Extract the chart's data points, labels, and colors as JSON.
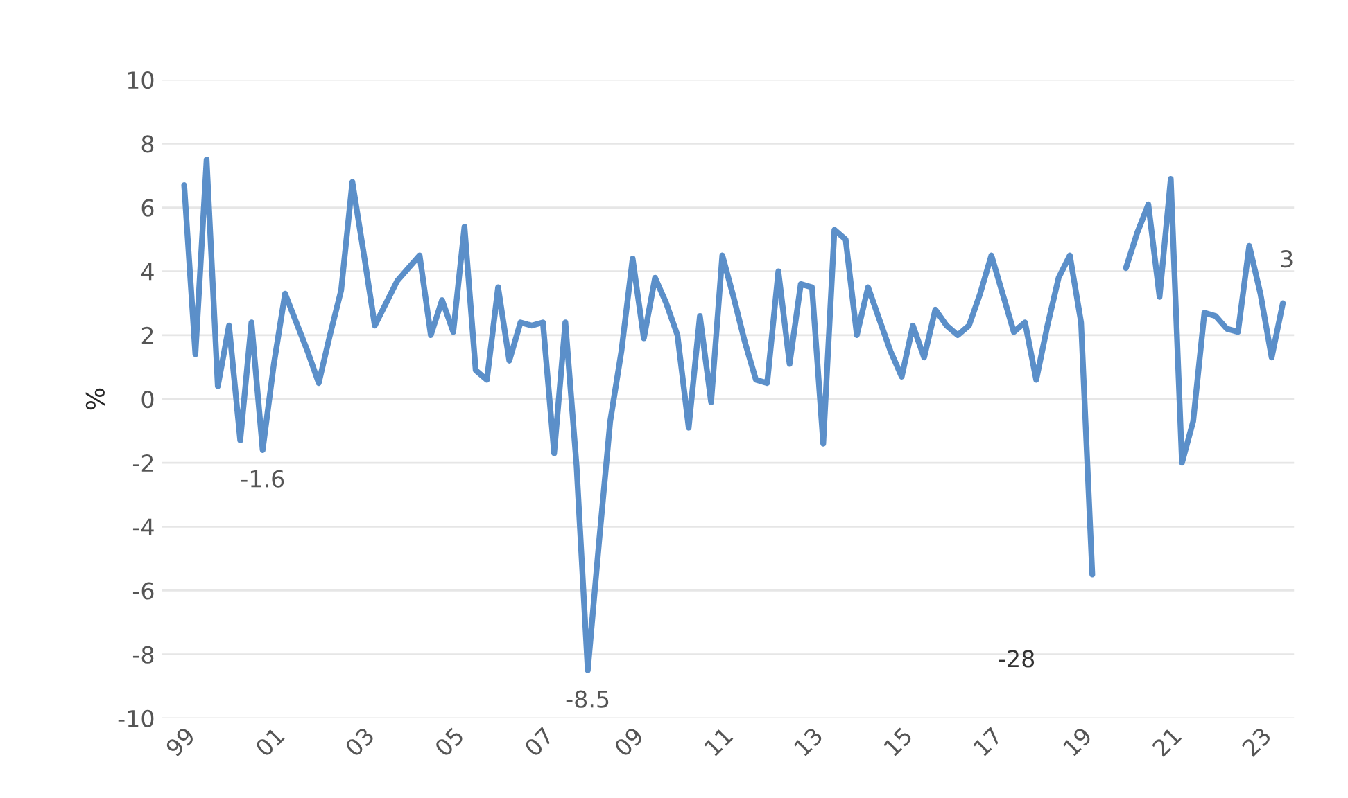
{
  "chart_data": {
    "type": "line",
    "ylabel": "%",
    "categories": [
      "99",
      null,
      null,
      null,
      null,
      null,
      null,
      null,
      "01",
      null,
      null,
      null,
      null,
      null,
      null,
      null,
      "03",
      null,
      null,
      null,
      null,
      null,
      null,
      null,
      "05",
      null,
      null,
      null,
      null,
      null,
      null,
      null,
      "07",
      null,
      null,
      null,
      null,
      null,
      null,
      null,
      "09",
      null,
      null,
      null,
      null,
      null,
      null,
      null,
      "11",
      null,
      null,
      null,
      null,
      null,
      null,
      null,
      "13",
      null,
      null,
      null,
      null,
      null,
      null,
      null,
      "15",
      null,
      null,
      null,
      null,
      null,
      null,
      null,
      "17",
      null,
      null,
      null,
      null,
      null,
      null,
      null,
      "19",
      null,
      null,
      null,
      null,
      null,
      null,
      null,
      "21",
      null,
      null,
      null,
      null,
      null,
      null,
      null,
      "23",
      null,
      null
    ],
    "series": [
      {
        "color": "#5b8fc9",
        "values": [
          6.7,
          1.4,
          7.5,
          0.4,
          2.3,
          -1.3,
          2.4,
          -1.6,
          1.1,
          3.3,
          2.4,
          1.5,
          0.5,
          2.0,
          3.4,
          6.8,
          4.6,
          2.3,
          3.0,
          3.7,
          4.1,
          4.5,
          2.0,
          3.1,
          2.1,
          5.4,
          0.9,
          0.6,
          3.5,
          1.2,
          2.4,
          2.3,
          2.4,
          -1.7,
          2.4,
          -2.1,
          -8.5,
          -4.5,
          -0.7,
          1.5,
          4.4,
          1.9,
          3.8,
          3.0,
          2.0,
          -0.9,
          2.6,
          -0.1,
          4.5,
          3.2,
          1.8,
          0.6,
          0.5,
          4.0,
          1.1,
          3.6,
          3.5,
          -1.4,
          5.3,
          5.0,
          2.0,
          3.5,
          2.5,
          1.5,
          0.7,
          2.3,
          1.3,
          2.8,
          2.3,
          2.0,
          2.3,
          3.3,
          4.5,
          3.3,
          2.1,
          2.4,
          0.6,
          2.3,
          3.8,
          4.5,
          2.4,
          -5.5,
          null,
          null,
          4.1,
          5.2,
          6.1,
          3.2,
          6.9,
          -2.0,
          -0.7,
          2.7,
          2.6,
          2.2,
          2.1,
          4.8,
          3.3,
          1.3,
          3
        ],
        "value_labels": [
          null,
          null,
          null,
          null,
          null,
          null,
          null,
          "-1.6",
          null,
          null,
          null,
          null,
          null,
          null,
          null,
          null,
          null,
          null,
          null,
          null,
          null,
          null,
          null,
          null,
          null,
          null,
          null,
          null,
          null,
          null,
          null,
          null,
          null,
          null,
          null,
          null,
          "-8.5",
          null,
          null,
          null,
          null,
          null,
          null,
          null,
          null,
          null,
          null,
          null,
          null,
          null,
          null,
          null,
          null,
          null,
          null,
          null,
          null,
          null,
          null,
          null,
          null,
          null,
          null,
          null,
          null,
          null,
          null,
          null,
          null,
          null,
          null,
          null,
          null,
          null,
          null,
          null,
          null,
          null,
          null,
          null,
          null,
          null,
          null,
          null,
          null,
          null,
          null,
          null,
          null,
          null,
          null,
          null,
          null,
          null,
          null,
          null,
          null,
          null,
          "3"
        ]
      }
    ],
    "ylim": [
      -10,
      10
    ],
    "yticks": [
      -10,
      -8,
      -6,
      -4,
      -2,
      0,
      2,
      4,
      6,
      8,
      10
    ],
    "grid": "y",
    "annotations": [
      "-28"
    ],
    "line_style": "solid"
  }
}
